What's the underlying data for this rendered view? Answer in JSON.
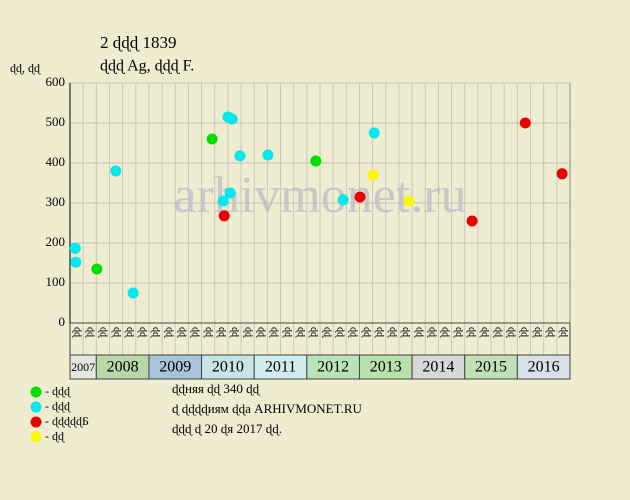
{
  "chart_data": {
    "type": "scatter",
    "title": "2 ɖɖɖ 1839",
    "subtitle": "ɖɖɖ Ag, ɖɖɖ F.",
    "y_label": "ɖɖ, ɖɖ",
    "watermark": "arhivmonet.ru",
    "xlim": [
      2007.5,
      2017
    ],
    "ylim": [
      0,
      600
    ],
    "yticks": [
      0,
      100,
      200,
      300,
      400,
      500,
      600
    ],
    "grid": true,
    "column_labels": [
      "ɖɖ",
      "ɖɖ",
      "ɖɖ",
      "ɖɖ",
      "ɖɖ",
      "ɖɖ",
      "ɖɖ",
      "ɖɖ",
      "ɖɖ",
      "ɖɖ",
      "ɖɖ",
      "ɖɖ",
      "ɖɖ",
      "ɖɖ",
      "ɖɖ",
      "ɖɖ",
      "ɖɖ",
      "ɖɖ",
      "ɖɖ",
      "ɖɖ",
      "ɖɖ",
      "ɖɖ",
      "ɖɖ",
      "ɖɖ",
      "ɖɖ",
      "ɖɖ",
      "ɖɖ",
      "ɖɖ",
      "ɖɖ",
      "ɖɖ",
      "ɖɖ",
      "ɖɖ",
      "ɖɖ",
      "ɖɖ",
      "ɖɖ",
      "ɖɖ",
      "ɖɖ",
      "ɖɖ"
    ],
    "years": [
      "2007",
      "2008",
      "2009",
      "2010",
      "2011",
      "2012",
      "2013",
      "2014",
      "2015",
      "2016"
    ],
    "year_colors": [
      "#e6e6e0",
      "#b8d8a8",
      "#a8c4d8",
      "#c8e4e4",
      "#d0ecec",
      "#b8e4b8",
      "#b8e0a8",
      "#d8d8d8",
      "#c0e0b8",
      "#d8e0e8"
    ],
    "series": [
      {
        "name": "- ɖɖɖ",
        "color": "#00e000",
        "x": [
          2008.01,
          2010.2,
          2012.17
        ],
        "values": [
          135,
          460,
          405
        ]
      },
      {
        "name": "- ɖɖɖ",
        "color": "#00e8f0",
        "x": [
          2007.6,
          2007.61,
          2008.37,
          2008.7,
          2010.41,
          2010.5,
          2010.58,
          2010.54,
          2010.73,
          2011.26,
          2012.69,
          2013.28
        ],
        "values": [
          187,
          152,
          380,
          75,
          305,
          515,
          510,
          325,
          418,
          420,
          308,
          475
        ]
      },
      {
        "name": "- ɖɖɖɖɖБ",
        "color": "#e80000",
        "x": [
          2010.43,
          2013.01,
          2015.14,
          2016.15,
          2016.85
        ],
        "values": [
          268,
          315,
          255,
          500,
          373
        ]
      },
      {
        "name": "- ɖɖ",
        "color": "#f8f800",
        "x": [
          2013.26,
          2013.94
        ],
        "values": [
          370,
          305
        ]
      }
    ],
    "notes": [
      "ɖɖняя ɖɖ 340 ɖɖ",
      "ɖ ɖɖɖɖиям ɖɖа ARHIVMONET.RU",
      "ɖɖɖ ɖ 20 ɖя 2017 ɖɖ."
    ]
  }
}
